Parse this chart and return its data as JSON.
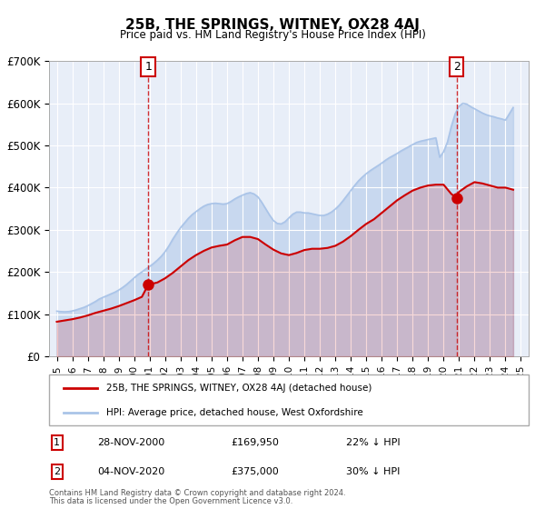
{
  "title": "25B, THE SPRINGS, WITNEY, OX28 4AJ",
  "subtitle": "Price paid vs. HM Land Registry's House Price Index (HPI)",
  "xlabel": "",
  "ylabel": "",
  "ylim": [
    0,
    700000
  ],
  "xlim": [
    1994.5,
    2025.5
  ],
  "yticks": [
    0,
    100000,
    200000,
    300000,
    400000,
    500000,
    600000,
    700000
  ],
  "ytick_labels": [
    "£0",
    "£100K",
    "£200K",
    "£300K",
    "£400K",
    "£500K",
    "£600K",
    "£700K"
  ],
  "xticks": [
    1995,
    1996,
    1997,
    1998,
    1999,
    2000,
    2001,
    2002,
    2003,
    2004,
    2005,
    2006,
    2007,
    2008,
    2009,
    2010,
    2011,
    2012,
    2013,
    2014,
    2015,
    2016,
    2017,
    2018,
    2019,
    2020,
    2021,
    2022,
    2023,
    2024,
    2025
  ],
  "background_color": "#ffffff",
  "plot_bg_color": "#e8eef8",
  "grid_color": "#ffffff",
  "hpi_color": "#aac4e8",
  "price_color": "#cc0000",
  "sale1_x": 2000.91,
  "sale1_y": 169950,
  "sale1_label": "1",
  "sale1_date": "28-NOV-2000",
  "sale1_price": "£169,950",
  "sale1_hpi": "22% ↓ HPI",
  "sale2_x": 2020.84,
  "sale2_y": 375000,
  "sale2_label": "2",
  "sale2_date": "04-NOV-2020",
  "sale2_price": "£375,000",
  "sale2_hpi": "30% ↓ HPI",
  "legend_line1": "25B, THE SPRINGS, WITNEY, OX28 4AJ (detached house)",
  "legend_line2": "HPI: Average price, detached house, West Oxfordshire",
  "footer1": "Contains HM Land Registry data © Crown copyright and database right 2024.",
  "footer2": "This data is licensed under the Open Government Licence v3.0.",
  "hpi_data_x": [
    1995.0,
    1995.25,
    1995.5,
    1995.75,
    1996.0,
    1996.25,
    1996.5,
    1996.75,
    1997.0,
    1997.25,
    1997.5,
    1997.75,
    1998.0,
    1998.25,
    1998.5,
    1998.75,
    1999.0,
    1999.25,
    1999.5,
    1999.75,
    2000.0,
    2000.25,
    2000.5,
    2000.75,
    2001.0,
    2001.25,
    2001.5,
    2001.75,
    2002.0,
    2002.25,
    2002.5,
    2002.75,
    2003.0,
    2003.25,
    2003.5,
    2003.75,
    2004.0,
    2004.25,
    2004.5,
    2004.75,
    2005.0,
    2005.25,
    2005.5,
    2005.75,
    2006.0,
    2006.25,
    2006.5,
    2006.75,
    2007.0,
    2007.25,
    2007.5,
    2007.75,
    2008.0,
    2008.25,
    2008.5,
    2008.75,
    2009.0,
    2009.25,
    2009.5,
    2009.75,
    2010.0,
    2010.25,
    2010.5,
    2010.75,
    2011.0,
    2011.25,
    2011.5,
    2011.75,
    2012.0,
    2012.25,
    2012.5,
    2012.75,
    2013.0,
    2013.25,
    2013.5,
    2013.75,
    2014.0,
    2014.25,
    2014.5,
    2014.75,
    2015.0,
    2015.25,
    2015.5,
    2015.75,
    2016.0,
    2016.25,
    2016.5,
    2016.75,
    2017.0,
    2017.25,
    2017.5,
    2017.75,
    2018.0,
    2018.25,
    2018.5,
    2018.75,
    2019.0,
    2019.25,
    2019.5,
    2019.75,
    2020.0,
    2020.25,
    2020.5,
    2020.75,
    2021.0,
    2021.25,
    2021.5,
    2021.75,
    2022.0,
    2022.25,
    2022.5,
    2022.75,
    2023.0,
    2023.25,
    2023.5,
    2023.75,
    2024.0,
    2024.25,
    2024.5
  ],
  "hpi_data_y": [
    107000,
    106000,
    105500,
    106000,
    107500,
    110000,
    113000,
    116000,
    120000,
    125000,
    130000,
    136000,
    140000,
    144000,
    148000,
    152000,
    157000,
    163000,
    170000,
    178000,
    186000,
    194000,
    200000,
    207000,
    213000,
    220000,
    228000,
    237000,
    248000,
    262000,
    278000,
    292000,
    305000,
    316000,
    327000,
    336000,
    343000,
    350000,
    356000,
    360000,
    362000,
    363000,
    362000,
    361000,
    362000,
    367000,
    373000,
    378000,
    382000,
    386000,
    388000,
    385000,
    378000,
    365000,
    350000,
    335000,
    322000,
    315000,
    314000,
    319000,
    328000,
    337000,
    342000,
    342000,
    340000,
    340000,
    338000,
    336000,
    334000,
    334000,
    337000,
    342000,
    349000,
    358000,
    369000,
    381000,
    393000,
    405000,
    416000,
    425000,
    433000,
    440000,
    446000,
    452000,
    458000,
    465000,
    471000,
    476000,
    481000,
    487000,
    492000,
    497000,
    502000,
    507000,
    510000,
    512000,
    514000,
    516000,
    518000,
    472000,
    485000,
    508000,
    545000,
    575000,
    593000,
    600000,
    598000,
    592000,
    587000,
    582000,
    577000,
    573000,
    570000,
    568000,
    565000,
    563000,
    560000,
    575000,
    590000
  ],
  "price_data_x": [
    1995.0,
    1995.5,
    1996.0,
    1996.5,
    1997.0,
    1997.5,
    1998.0,
    1998.5,
    1999.0,
    1999.5,
    2000.0,
    2000.5,
    2000.91,
    2001.5,
    2002.0,
    2002.5,
    2003.0,
    2003.5,
    2004.0,
    2004.5,
    2005.0,
    2005.5,
    2006.0,
    2006.5,
    2007.0,
    2007.5,
    2008.0,
    2008.5,
    2009.0,
    2009.5,
    2010.0,
    2010.5,
    2011.0,
    2011.5,
    2012.0,
    2012.5,
    2013.0,
    2013.5,
    2014.0,
    2014.5,
    2015.0,
    2015.5,
    2016.0,
    2016.5,
    2017.0,
    2017.5,
    2018.0,
    2018.5,
    2019.0,
    2019.5,
    2020.0,
    2020.5,
    2020.84,
    2021.0,
    2021.5,
    2022.0,
    2022.5,
    2023.0,
    2023.5,
    2024.0,
    2024.5
  ],
  "price_data_y": [
    82000,
    85000,
    88000,
    92000,
    97000,
    103000,
    108000,
    113000,
    119000,
    126000,
    133000,
    141000,
    169950,
    175000,
    185000,
    198000,
    213000,
    228000,
    240000,
    250000,
    258000,
    262000,
    265000,
    275000,
    283000,
    283000,
    278000,
    265000,
    253000,
    244000,
    240000,
    245000,
    252000,
    255000,
    255000,
    257000,
    262000,
    272000,
    285000,
    300000,
    314000,
    325000,
    340000,
    355000,
    370000,
    382000,
    393000,
    400000,
    405000,
    407000,
    407000,
    385000,
    375000,
    390000,
    403000,
    413000,
    410000,
    405000,
    400000,
    400000,
    395000
  ]
}
